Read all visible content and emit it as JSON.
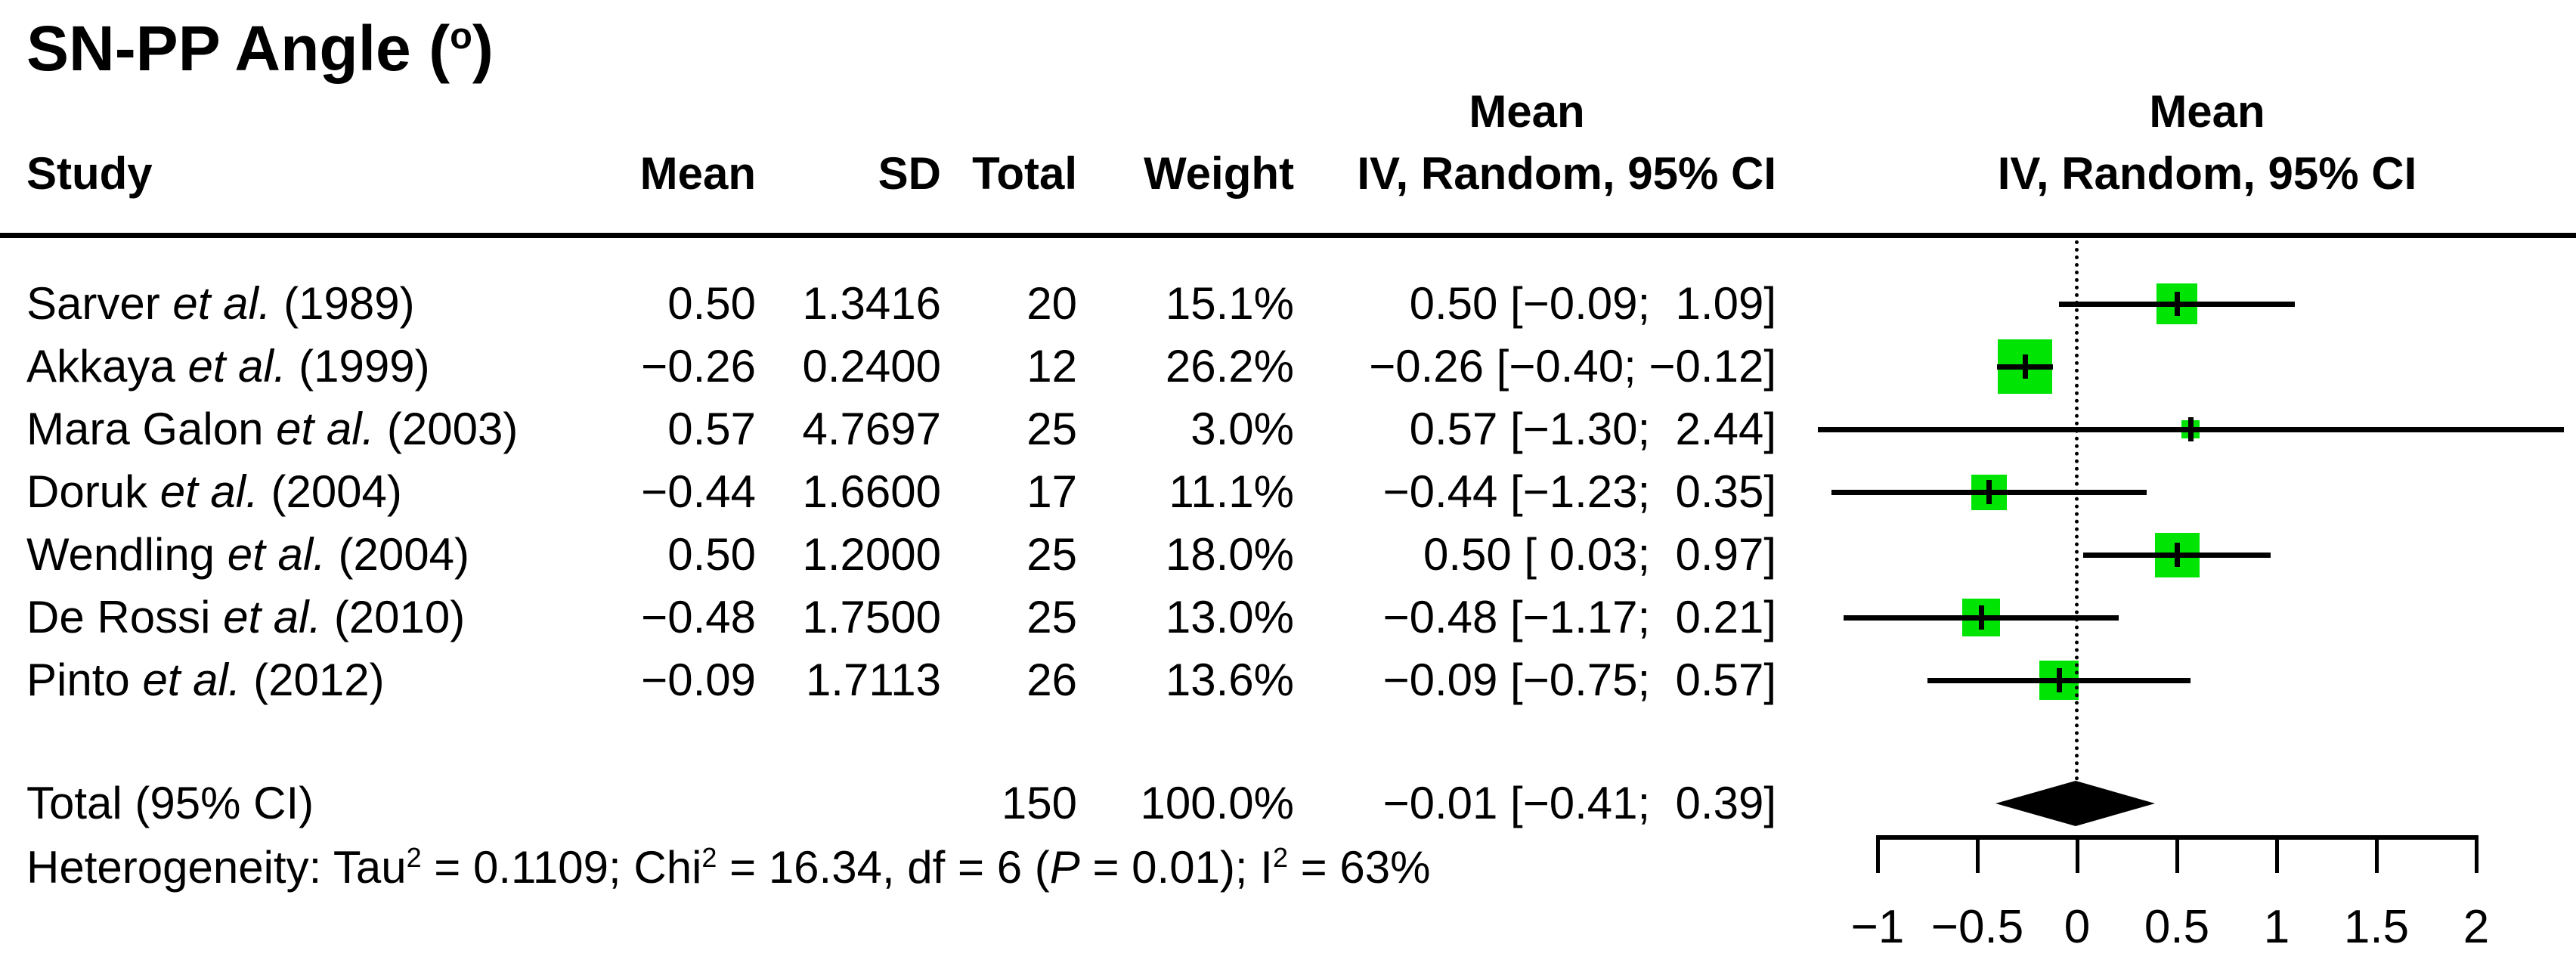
{
  "title": {
    "text": "SN-PP Angle (o)",
    "segments": [
      {
        "t": "SN-PP Angle ("
      },
      {
        "t": "o",
        "sup": true
      },
      {
        "t": ")"
      }
    ]
  },
  "columns": {
    "mean_top_label": "Mean",
    "study": "Study",
    "mean": "Mean",
    "sd": "SD",
    "total": "Total",
    "weight": "Weight",
    "ci": "IV, Random, 95% CI",
    "plot_mean_top_label": "Mean",
    "plot_ci": "IV, Random, 95% CI"
  },
  "chart_data": {
    "type": "forest",
    "xlabel_ticks_note": "axis of mean difference, IV random effects",
    "square_color": "#00e404",
    "line_color": "#000000",
    "zero_line": 0,
    "axis": {
      "ticks": [
        {
          "v": -1,
          "label": "−1"
        },
        {
          "v": -0.5,
          "label": "−0.5"
        },
        {
          "v": 0,
          "label": "0"
        },
        {
          "v": 0.5,
          "label": "0.5"
        },
        {
          "v": 1,
          "label": "1"
        },
        {
          "v": 1.5,
          "label": "1.5"
        },
        {
          "v": 2,
          "label": "2"
        }
      ],
      "tick_range": [
        -1,
        2
      ]
    },
    "studies": [
      {
        "name_pre": "Sarver ",
        "name_it": "et al.",
        "name_post": " (1989)",
        "mean": "0.50",
        "sd": "1.3416",
        "total": "20",
        "weight": "15.1%",
        "ci": "0.50 [−0.09;  1.09]",
        "mean_v": 0.5,
        "lo": -0.09,
        "hi": 1.09,
        "weight_v": 15.1
      },
      {
        "name_pre": "Akkaya ",
        "name_it": "et al.",
        "name_post": " (1999)",
        "mean": "−0.26",
        "sd": "0.2400",
        "total": "12",
        "weight": "26.2%",
        "ci": "−0.26 [−0.40; −0.12]",
        "mean_v": -0.26,
        "lo": -0.4,
        "hi": -0.12,
        "weight_v": 26.2
      },
      {
        "name_pre": "Mara Galon ",
        "name_it": "et al.",
        "name_post": " (2003)",
        "mean": "0.57",
        "sd": "4.7697",
        "total": "25",
        "weight": "3.0%",
        "ci": "0.57 [−1.30;  2.44]",
        "mean_v": 0.57,
        "lo": -1.3,
        "hi": 2.44,
        "weight_v": 3.0
      },
      {
        "name_pre": "Doruk ",
        "name_it": "et al.",
        "name_post": " (2004)",
        "mean": "−0.44",
        "sd": "1.6600",
        "total": "17",
        "weight": "11.1%",
        "ci": "−0.44 [−1.23;  0.35]",
        "mean_v": -0.44,
        "lo": -1.23,
        "hi": 0.35,
        "weight_v": 11.1
      },
      {
        "name_pre": "Wendling ",
        "name_it": "et al.",
        "name_post": " (2004)",
        "mean": "0.50",
        "sd": "1.2000",
        "total": "25",
        "weight": "18.0%",
        "ci": "0.50 [ 0.03;  0.97]",
        "mean_v": 0.5,
        "lo": 0.03,
        "hi": 0.97,
        "weight_v": 18.0
      },
      {
        "name_pre": "De Rossi ",
        "name_it": "et al.",
        "name_post": " (2010)",
        "mean": "−0.48",
        "sd": "1.7500",
        "total": "25",
        "weight": "13.0%",
        "ci": "−0.48 [−1.17;  0.21]",
        "mean_v": -0.48,
        "lo": -1.17,
        "hi": 0.21,
        "weight_v": 13.0
      },
      {
        "name_pre": "Pinto ",
        "name_it": "et al.",
        "name_post": " (2012)",
        "mean": "−0.09",
        "sd": "1.7113",
        "total": "26",
        "weight": "13.6%",
        "ci": "−0.09 [−0.75;  0.57]",
        "mean_v": -0.09,
        "lo": -0.75,
        "hi": 0.57,
        "weight_v": 13.6
      }
    ],
    "total": {
      "label": "Total (95% CI)",
      "total": "150",
      "weight": "100.0%",
      "ci": "−0.01 [−0.41;  0.39]",
      "mean_v": -0.01,
      "lo": -0.41,
      "hi": 0.39
    },
    "heterogeneity_segments": [
      {
        "t": "Heterogeneity: Tau"
      },
      {
        "t": "2",
        "sup": true
      },
      {
        "t": " = 0.1109; Chi"
      },
      {
        "t": "2",
        "sup": true
      },
      {
        "t": " = 16.34, df = 6 ("
      },
      {
        "t": "P",
        "it": true
      },
      {
        "t": " = 0.01); I"
      },
      {
        "t": "2",
        "sup": true
      },
      {
        "t": " = 63%"
      }
    ]
  }
}
